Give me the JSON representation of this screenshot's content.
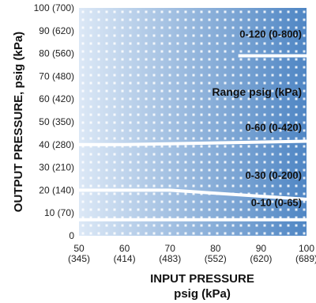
{
  "chart_data": {
    "type": "area",
    "title": "",
    "xlabel": "INPUT PRESSURE",
    "xlabel_unit": "psig (kPa)",
    "ylabel": "OUTPUT PRESSURE, psig (kPa)",
    "xlim": [
      50,
      100
    ],
    "ylim": [
      0,
      100
    ],
    "x_ticks": [
      {
        "value": 50,
        "label": "50",
        "sublabel": "(345)"
      },
      {
        "value": 60,
        "label": "60",
        "sublabel": "(414)"
      },
      {
        "value": 70,
        "label": "70",
        "sublabel": "(483)"
      },
      {
        "value": 80,
        "label": "80",
        "sublabel": "(552)"
      },
      {
        "value": 90,
        "label": "90",
        "sublabel": "(620)"
      },
      {
        "value": 100,
        "label": "100",
        "sublabel": "(689)"
      }
    ],
    "y_ticks": [
      {
        "value": 0,
        "label": "0"
      },
      {
        "value": 10,
        "label": "10 (70)"
      },
      {
        "value": 20,
        "label": "20 (140)"
      },
      {
        "value": 30,
        "label": "30 (210)"
      },
      {
        "value": 40,
        "label": "40 (280)"
      },
      {
        "value": 50,
        "label": "50 (350)"
      },
      {
        "value": 60,
        "label": "60 (420)"
      },
      {
        "value": 70,
        "label": "70 (480)"
      },
      {
        "value": 80,
        "label": "80 (560)"
      },
      {
        "value": 90,
        "label": "90 (620)"
      },
      {
        "value": 100,
        "label": "100 (700)"
      }
    ],
    "legend_title": "Range psig (kPa)",
    "series": [
      {
        "name": "0-120 (0-800)",
        "label_at": [
          100,
          87
        ],
        "x": [
          85,
          100
        ],
        "y": [
          79,
          79
        ]
      },
      {
        "name": "0-60 (0-420)",
        "label_at": [
          100,
          46
        ],
        "x": [
          50,
          60,
          100
        ],
        "y": [
          40,
          40,
          41.5
        ]
      },
      {
        "name": "0-30 (0-200)",
        "label_at": [
          100,
          25
        ],
        "x": [
          50,
          70,
          100
        ],
        "y": [
          20,
          20,
          16
        ]
      },
      {
        "name": "0-10 (0-65)",
        "label_at": [
          100,
          13
        ],
        "x": [
          50,
          100
        ],
        "y": [
          7,
          7
        ]
      }
    ],
    "colors": {
      "light": "#dce8f6",
      "dark": "#4f86c4",
      "tick": "#ffffff"
    }
  }
}
